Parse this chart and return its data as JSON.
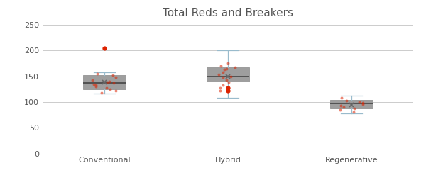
{
  "title": "Total Reds and Breakers",
  "categories": [
    "Conventional",
    "Hybrid",
    "Regenerative"
  ],
  "box_data": {
    "Conventional": {
      "whislo": 117,
      "q1": 125,
      "med": 137,
      "mean": 138,
      "q3": 152,
      "whishi": 158,
      "fliers": [
        205
      ]
    },
    "Hybrid": {
      "whislo": 108,
      "q1": 140,
      "med": 150,
      "mean": 150,
      "q3": 167,
      "whishi": 200,
      "fliers": [
        122,
        128
      ]
    },
    "Regenerative": {
      "whislo": 78,
      "q1": 88,
      "med": 97,
      "mean": 95,
      "q3": 104,
      "whishi": 112,
      "fliers": []
    }
  },
  "scatter_points": {
    "Conventional": [
      118,
      122,
      125,
      128,
      130,
      133,
      135,
      137,
      138,
      140,
      142,
      148,
      152,
      155
    ],
    "Hybrid": [
      122,
      128,
      133,
      138,
      143,
      148,
      150,
      153,
      158,
      163,
      165,
      168,
      170,
      175
    ],
    "Regenerative": [
      80,
      85,
      88,
      90,
      93,
      96,
      98,
      100,
      103,
      108
    ]
  },
  "box_color": "#dd2200",
  "box_edge_color": "#999999",
  "median_color": "#444444",
  "whisker_color": "#99bbcc",
  "flier_color": "#dd2200",
  "scatter_color": "#dd2200",
  "mean_marker_color": "#666666",
  "background_color": "#ffffff",
  "grid_color": "#cccccc",
  "ylim": [
    0,
    255
  ],
  "yticks": [
    0,
    50,
    100,
    150,
    200,
    250
  ],
  "title_fontsize": 11,
  "label_fontsize": 8,
  "fig_width": 6.0,
  "fig_height": 2.61
}
